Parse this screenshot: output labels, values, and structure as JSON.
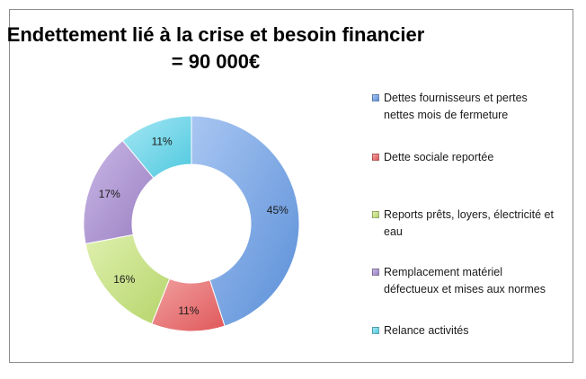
{
  "chart_data": {
    "type": "pie",
    "title_lines": [
      "Endettement lié à la crise et besoin financier",
      "= 90 000€"
    ],
    "series": [
      {
        "name": "Dettes fournisseurs et pertes nettes mois de fermeture",
        "value": 45,
        "label": "45%",
        "color": "#5a8fd8",
        "color_light": "#a9c6f2"
      },
      {
        "name": "Dette sociale reportée",
        "value": 11,
        "label": "11%",
        "color": "#e0585a",
        "color_light": "#f1a0a0"
      },
      {
        "name": "Reports prêts, loyers, électricité et eau",
        "value": 16,
        "label": "16%",
        "color": "#b6d56b",
        "color_light": "#def0ae"
      },
      {
        "name": "Remplacement matériel défectueux et mises aux normes",
        "value": 17,
        "label": "17%",
        "color": "#9a7fc2",
        "color_light": "#cab8e6"
      },
      {
        "name": "Relance activités",
        "value": 11,
        "label": "11%",
        "color": "#4fc8df",
        "color_light": "#a6e8f4"
      }
    ],
    "style": "doughnut",
    "legend_position": "right"
  }
}
